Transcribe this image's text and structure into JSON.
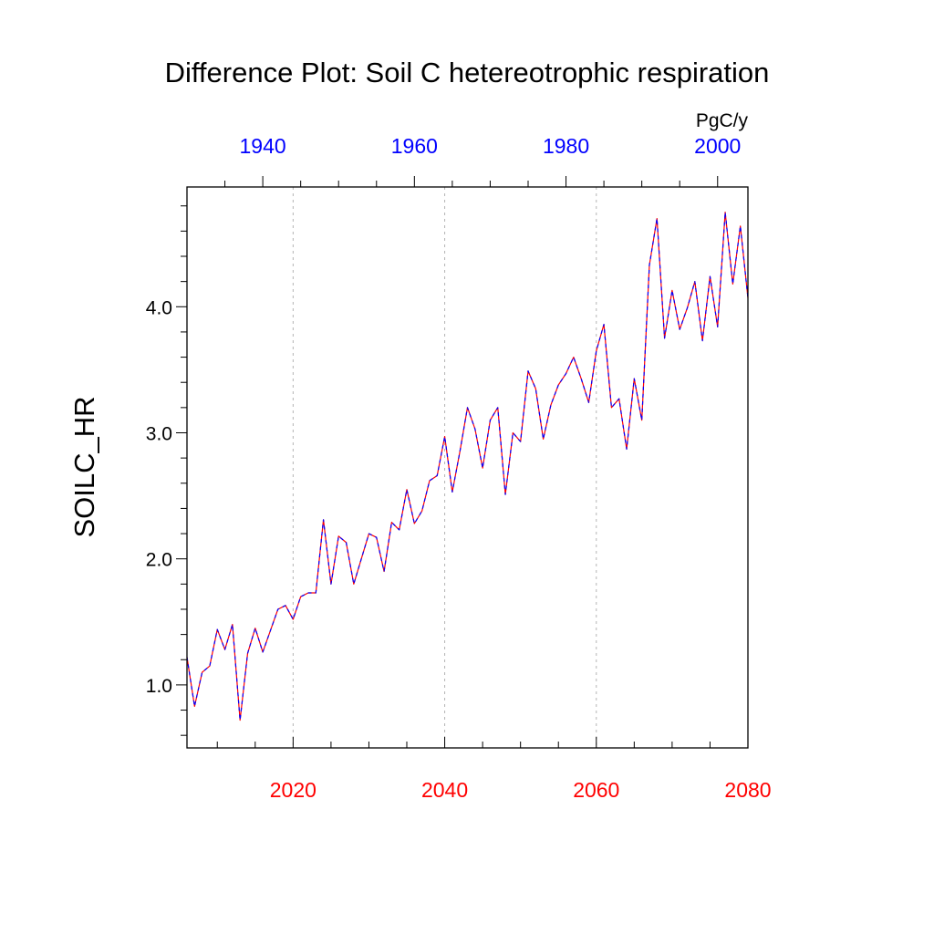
{
  "chart_data": {
    "type": "line",
    "title": "Difference Plot: Soil C hetereotrophic respiration",
    "units": "PgC/y",
    "ylabel": "SOILC_HR",
    "ylim": [
      0.5,
      4.95
    ],
    "yticks": [
      {
        "value": 1.0,
        "label": "1.0"
      },
      {
        "value": 2.0,
        "label": "2.0"
      },
      {
        "value": 3.0,
        "label": "3.0"
      },
      {
        "value": 4.0,
        "label": "4.0"
      }
    ],
    "bottom_axis": {
      "color": "#ff0000",
      "xlim": [
        2006,
        2080
      ],
      "ticks": [
        {
          "value": 2020,
          "label": "2020"
        },
        {
          "value": 2040,
          "label": "2040"
        },
        {
          "value": 2060,
          "label": "2060"
        },
        {
          "value": 2080,
          "label": "2080"
        }
      ]
    },
    "top_axis": {
      "color": "#0000ff",
      "xlim": [
        1930,
        2004
      ],
      "ticks": [
        {
          "value": 1940,
          "label": "1940"
        },
        {
          "value": 1960,
          "label": "1960"
        },
        {
          "value": 1980,
          "label": "1980"
        },
        {
          "value": 2000,
          "label": "2000"
        }
      ]
    },
    "grid": "vertical dashed at major bottom ticks",
    "series": [
      {
        "colors": [
          "#ff0000",
          "#0000ff"
        ],
        "x": [
          2006,
          2007,
          2008,
          2009,
          2010,
          2011,
          2012,
          2013,
          2014,
          2015,
          2016,
          2017,
          2018,
          2019,
          2020,
          2021,
          2022,
          2023,
          2024,
          2025,
          2026,
          2027,
          2028,
          2029,
          2030,
          2031,
          2032,
          2033,
          2034,
          2035,
          2036,
          2037,
          2038,
          2039,
          2040,
          2041,
          2042,
          2043,
          2044,
          2045,
          2046,
          2047,
          2048,
          2049,
          2050,
          2051,
          2052,
          2053,
          2054,
          2055,
          2056,
          2057,
          2058,
          2059,
          2060,
          2061,
          2062,
          2063,
          2064,
          2065,
          2066,
          2067,
          2068,
          2069,
          2070,
          2071,
          2072,
          2073,
          2074,
          2075,
          2076,
          2077,
          2078,
          2079,
          2080
        ],
        "values": [
          1.22,
          0.83,
          1.1,
          1.15,
          1.44,
          1.28,
          1.48,
          0.72,
          1.25,
          1.45,
          1.26,
          1.43,
          1.6,
          1.63,
          1.52,
          1.7,
          1.73,
          1.73,
          2.31,
          1.8,
          2.18,
          2.13,
          1.8,
          2.0,
          2.2,
          2.17,
          1.9,
          2.29,
          2.23,
          2.55,
          2.28,
          2.38,
          2.62,
          2.66,
          2.97,
          2.53,
          2.85,
          3.2,
          3.03,
          2.72,
          3.1,
          3.2,
          2.51,
          3.0,
          2.93,
          3.49,
          3.35,
          2.95,
          3.22,
          3.38,
          3.47,
          3.6,
          3.43,
          3.24,
          3.65,
          3.86,
          3.2,
          3.27,
          2.87,
          3.43,
          3.1,
          4.33,
          4.7,
          3.75,
          4.13,
          3.82,
          3.99,
          4.2,
          3.73,
          4.24,
          3.84,
          4.75,
          4.18,
          4.64,
          4.07
        ]
      }
    ]
  }
}
